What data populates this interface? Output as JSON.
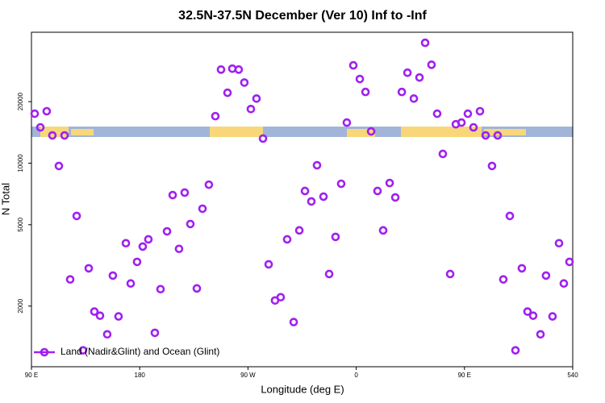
{
  "chart_data": {
    "type": "scatter",
    "title": "32.5N-37.5N December (Ver 10)   Inf to -Inf",
    "x_label": "Longitude (deg E)",
    "y_label": "N Total",
    "log_y": true,
    "legend": "bottom-left",
    "xlim": [
      90,
      540
    ],
    "ylim": [
      1010,
      43700
    ],
    "xticks": [
      {
        "value": 90,
        "label": "90 E"
      },
      180,
      {
        "value": 270,
        "label": "90 W"
      },
      {
        "value": 360,
        "label": "0"
      },
      {
        "value": 450,
        "label": "90 E"
      },
      540
    ],
    "yticks": [
      2000,
      5000,
      10000,
      20000
    ],
    "x": [
      92.7,
      97.4,
      102.7,
      107.4,
      112.8,
      117.5,
      122.2,
      127.6,
      132.9,
      137.6,
      142.3,
      147.0,
      153.0,
      157.7,
      162.4,
      168.5,
      172.5,
      177.8,
      182.5,
      187.2,
      192.6,
      197.3,
      202.7,
      207.4,
      212.7,
      217.4,
      222.1,
      227.5,
      232.2,
      237.5,
      242.9,
      247.6,
      253.0,
      257.0,
      262.3,
      267.0,
      272.4,
      277.1,
      282.5,
      287.2,
      292.5,
      297.2,
      302.6,
      308.0,
      312.7,
      317.4,
      322.7,
      327.4,
      332.8,
      337.5,
      342.8,
      347.5,
      352.2,
      357.6,
      363.0,
      367.7,
      372.4,
      377.7,
      382.4,
      387.8,
      392.5,
      397.9,
      402.6,
      407.9,
      412.6,
      417.3,
      422.6,
      427.3,
      432.0,
      438.1,
      442.8,
      447.5,
      452.8,
      457.5,
      462.9,
      467.6,
      472.9,
      477.6,
      482.3,
      487.7,
      492.4,
      497.7,
      502.4,
      507.1,
      513.2,
      517.8,
      523.2,
      528.6,
      532.6,
      537.3
    ],
    "series": [
      {
        "name": "Land (Nadir&Glint) and Ocean (Glint)",
        "color": "#a020f0",
        "values": [
          17460,
          14960,
          17950,
          13670,
          9690,
          13670,
          2700,
          5520,
          1215,
          3060,
          1880,
          1795,
          1455,
          2820,
          1780,
          4060,
          2580,
          3290,
          3910,
          4240,
          1480,
          2420,
          4640,
          6980,
          3810,
          7180,
          5040,
          2440,
          5990,
          7850,
          16980,
          28700,
          22100,
          29000,
          28700,
          24800,
          18400,
          20700,
          13200,
          3200,
          2130,
          2210,
          4240,
          1670,
          4690,
          7310,
          6500,
          9770,
          6860,
          2870,
          4360,
          7930,
          15800,
          30100,
          25800,
          22300,
          14300,
          7310,
          4690,
          8000,
          6800,
          22300,
          27700,
          20700,
          26250,
          38800,
          30300,
          17460,
          11100,
          2870,
          15500,
          15800,
          17460,
          14960,
          17950,
          13670,
          9690,
          13670,
          2700,
          5520,
          1215,
          3060,
          1880,
          1795,
          1455,
          2820,
          1780,
          4060,
          2580,
          3290
        ]
      }
    ]
  }
}
